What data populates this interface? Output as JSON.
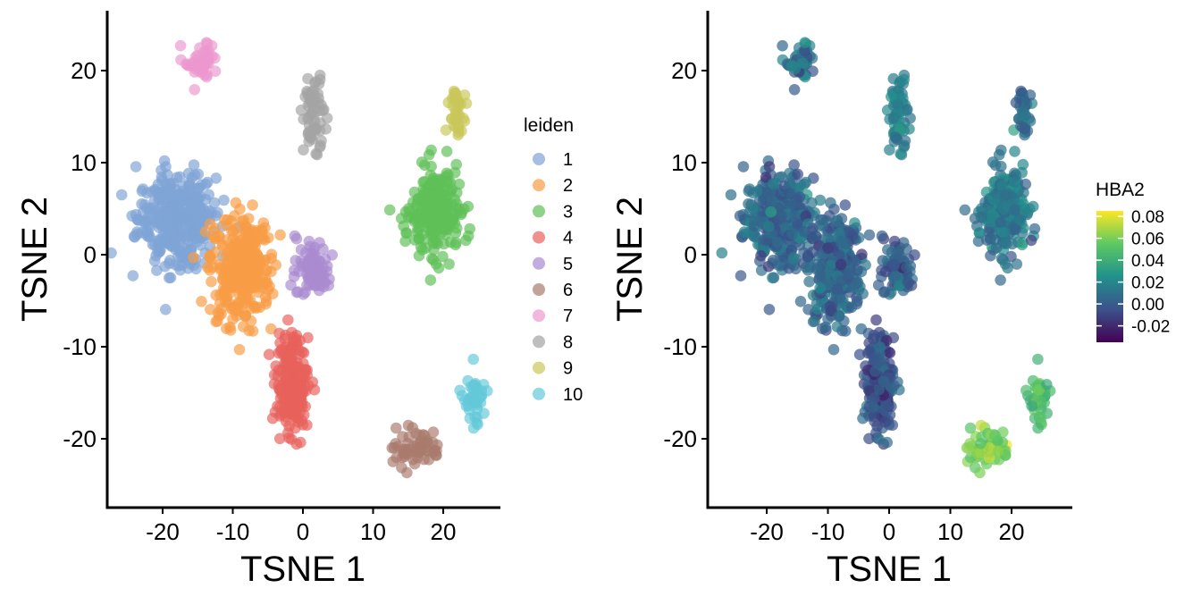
{
  "chart_data": [
    {
      "type": "scatter",
      "xlabel": "TSNE 1",
      "ylabel": "TSNE 2",
      "xlim": [
        -29,
        29
      ],
      "ylim": [
        -27,
        26
      ],
      "xticks": [
        -20,
        -10,
        0,
        10,
        20
      ],
      "yticks": [
        20,
        10,
        0,
        -10,
        -20
      ],
      "xtick_labels": [
        "-20",
        "-10",
        "0",
        "10",
        "20"
      ],
      "ytick_labels": [
        "20",
        "10",
        "0",
        "-10",
        "-20"
      ],
      "grid": false,
      "legend": {
        "title": "leiden",
        "placement": "right",
        "entries": [
          {
            "label": "1",
            "color": "#7fa3d6"
          },
          {
            "label": "2",
            "color": "#f89c45"
          },
          {
            "label": "3",
            "color": "#5fbf57"
          },
          {
            "label": "4",
            "color": "#e8625c"
          },
          {
            "label": "5",
            "color": "#a98ad0"
          },
          {
            "label": "6",
            "color": "#a97b6d"
          },
          {
            "label": "7",
            "color": "#ec98cf"
          },
          {
            "label": "8",
            "color": "#a3a3a3"
          },
          {
            "label": "9",
            "color": "#c9c75a"
          },
          {
            "label": "10",
            "color": "#63c9d9"
          }
        ]
      },
      "clusters": [
        {
          "label": "1",
          "center": [
            -18,
            4
          ],
          "spread": [
            5,
            4.5
          ],
          "points": 360
        },
        {
          "label": "2",
          "center": [
            -9,
            -1.5
          ],
          "spread": [
            4,
            5.5
          ],
          "points": 300
        },
        {
          "label": "3",
          "center": [
            19,
            4.5
          ],
          "spread": [
            3.2,
            4.2
          ],
          "points": 260
        },
        {
          "label": "4",
          "center": [
            -1.5,
            -14
          ],
          "spread": [
            2,
            4.5
          ],
          "points": 220
        },
        {
          "label": "5",
          "center": [
            1.5,
            -1.5
          ],
          "spread": [
            2.3,
            3
          ],
          "points": 80
        },
        {
          "label": "6",
          "center": [
            16,
            -21
          ],
          "spread": [
            3.5,
            1.8
          ],
          "points": 60
        },
        {
          "label": "7",
          "center": [
            -14.5,
            21
          ],
          "spread": [
            2.2,
            2
          ],
          "points": 50
        },
        {
          "label": "8",
          "center": [
            1.5,
            15
          ],
          "spread": [
            1.3,
            4
          ],
          "points": 60
        },
        {
          "label": "9",
          "center": [
            22,
            15.5
          ],
          "spread": [
            1.4,
            1.8
          ],
          "points": 35
        },
        {
          "label": "10",
          "center": [
            24.5,
            -16
          ],
          "spread": [
            1.3,
            3
          ],
          "points": 40
        }
      ]
    },
    {
      "type": "scatter",
      "xlabel": "TSNE 1",
      "ylabel": "TSNE 2",
      "xlim": [
        -29,
        29
      ],
      "ylim": [
        -27,
        26
      ],
      "xticks": [
        -20,
        -10,
        0,
        10,
        20
      ],
      "yticks": [
        20,
        10,
        0,
        -10,
        -20
      ],
      "xtick_labels": [
        "-20",
        "-10",
        "0",
        "10",
        "20"
      ],
      "ytick_labels": [
        "20",
        "10",
        "0",
        "-10",
        "-20"
      ],
      "grid": false,
      "colorbar": {
        "title": "HBA2",
        "placement": "right",
        "range": [
          -0.035,
          0.085
        ],
        "ticks": [
          0.08,
          0.06,
          0.04,
          0.02,
          0.0,
          -0.02
        ],
        "tick_labels": [
          "0.08",
          "0.06",
          "0.04",
          "0.02",
          "0.00",
          "-0.02"
        ],
        "colormap": [
          "#440154",
          "#3b528b",
          "#21918c",
          "#5ec962",
          "#fde725"
        ]
      },
      "typical_values": {
        "1": 0.005,
        "2": 0.003,
        "3": 0.012,
        "4": -0.005,
        "5": 0.002,
        "6": 0.06,
        "7": 0.01,
        "8": 0.018,
        "9": 0.005,
        "10": 0.045
      }
    }
  ]
}
